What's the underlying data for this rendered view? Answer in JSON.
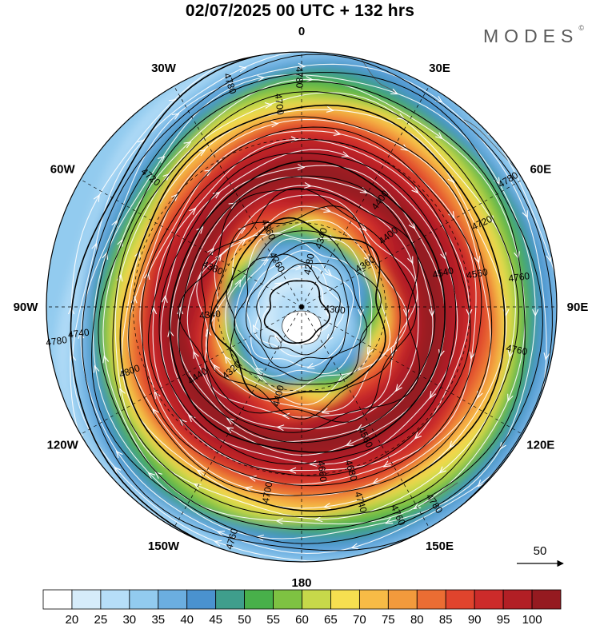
{
  "title": "02/07/2025  00 UTC  + 132 hrs",
  "brand": {
    "name": "MODES",
    "mark": "©"
  },
  "map": {
    "projection": "south-polar-stereographic",
    "longitude_labels": [
      {
        "text": "0",
        "lon": 0
      },
      {
        "text": "30E",
        "lon": 30
      },
      {
        "text": "60E",
        "lon": 60
      },
      {
        "text": "90E",
        "lon": 90
      },
      {
        "text": "120E",
        "lon": 120
      },
      {
        "text": "150E",
        "lon": 150
      },
      {
        "text": "180",
        "lon": 180
      },
      {
        "text": "150W",
        "lon": -150
      },
      {
        "text": "120W",
        "lon": -120
      },
      {
        "text": "90W",
        "lon": -90
      },
      {
        "text": "60W",
        "lon": -60
      },
      {
        "text": "30W",
        "lon": -30
      }
    ],
    "contour_labels": [
      {
        "text": "4780",
        "a": -0.55,
        "r": 0.95
      },
      {
        "text": "4760",
        "a": 0.2,
        "r": 0.86
      },
      {
        "text": "4780",
        "a": 0.98,
        "r": 0.93
      },
      {
        "text": "4760",
        "a": 1.14,
        "r": 0.9
      },
      {
        "text": "4740",
        "a": 1.28,
        "r": 0.8
      },
      {
        "text": "4760",
        "a": 1.86,
        "r": 0.95
      },
      {
        "text": "4700",
        "a": 1.75,
        "r": 0.74
      },
      {
        "text": "4660",
        "a": 1.45,
        "r": 0.65
      },
      {
        "text": "4680",
        "a": 1.28,
        "r": 0.67
      },
      {
        "text": "4560",
        "a": 1.12,
        "r": 0.57
      },
      {
        "text": "4400",
        "a": 1.82,
        "r": 0.36
      },
      {
        "text": "4340",
        "a": 3.05,
        "r": 0.36
      },
      {
        "text": "4320",
        "a": 2.4,
        "r": 0.37
      },
      {
        "text": "4440",
        "a": 2.55,
        "r": 0.49
      },
      {
        "text": "4380",
        "a": 3.55,
        "r": 0.38
      },
      {
        "text": "4260",
        "a": 4.2,
        "r": 0.2
      },
      {
        "text": "4280",
        "a": 4.9,
        "r": 0.17
      },
      {
        "text": "4300",
        "a": 0.1,
        "r": 0.13
      },
      {
        "text": "4360",
        "a": 5.7,
        "r": 0.3
      },
      {
        "text": "4340",
        "a": 5.0,
        "r": 0.28
      },
      {
        "text": "4360",
        "a": 4.3,
        "r": 0.33
      },
      {
        "text": "4400",
        "a": 5.6,
        "r": 0.44
      },
      {
        "text": "4400",
        "a": 5.35,
        "r": 0.52
      },
      {
        "text": "4540",
        "a": 6.05,
        "r": 0.57
      },
      {
        "text": "4560",
        "a": 6.1,
        "r": 0.7
      },
      {
        "text": "4720",
        "a": 5.85,
        "r": 0.78
      },
      {
        "text": "4760",
        "a": 6.15,
        "r": 0.86
      },
      {
        "text": "4700",
        "a": 4.6,
        "r": 0.8
      },
      {
        "text": "4780",
        "a": 4.4,
        "r": 0.92
      },
      {
        "text": "4780",
        "a": 4.7,
        "r": 0.9
      },
      {
        "text": "4720",
        "a": 3.85,
        "r": 0.78
      },
      {
        "text": "4800",
        "a": 2.78,
        "r": 0.72
      },
      {
        "text": "4740",
        "a": 3.02,
        "r": 0.88
      },
      {
        "text": "4780",
        "a": 3.0,
        "r": 0.97
      }
    ]
  },
  "wind_reference": {
    "label": "50"
  },
  "colorbar": {
    "colors": [
      "#ffffff",
      "#d6ecfa",
      "#b6def8",
      "#92cbef",
      "#6baee0",
      "#4a92cf",
      "#3f9e8c",
      "#48b04a",
      "#7ec242",
      "#c7d84a",
      "#f6df50",
      "#f7bb46",
      "#f29a3c",
      "#eb6d33",
      "#e0442d",
      "#cc2b2a",
      "#b21f25",
      "#951a20"
    ],
    "labels": [
      "20",
      "25",
      "30",
      "35",
      "40",
      "45",
      "50",
      "55",
      "60",
      "65",
      "70",
      "75",
      "80",
      "85",
      "90",
      "95",
      "100"
    ]
  }
}
